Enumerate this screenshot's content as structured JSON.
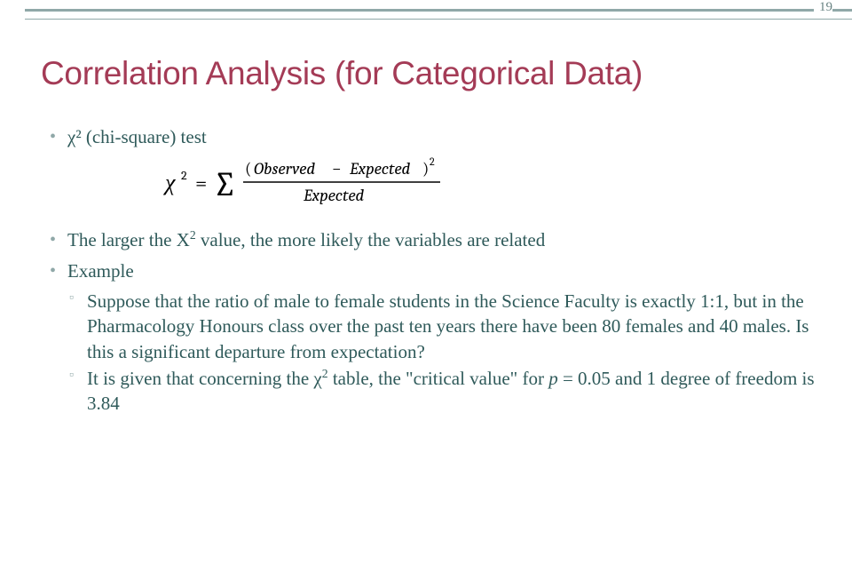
{
  "page_number": "19",
  "colors": {
    "bar": "#90a8a8",
    "page_num": "#6a8484",
    "title": "#a43b56",
    "bullet_marker": "#90a8a8",
    "body_text": "#2f5a5a",
    "formula_text": "#000000"
  },
  "title": "Correlation Analysis (for Categorical Data)",
  "bullets": {
    "l1_0": "χ² (chi-square) test",
    "l1_1_pre": "The larger the Χ",
    "l1_1_post": " value, the more likely the variables are related",
    "l1_2": "Example",
    "l2_0": "Suppose that the ratio of male to female students in the Science Faculty is exactly 1:1, but in the Pharmacology Honours class over the past ten years there have been 80 females and 40 males. Is this a significant departure from expectation?",
    "l2_1_pre": "It is given that concerning the χ",
    "l2_1_mid": " table, the \"critical value\" for ",
    "l2_1_p": "p",
    "l2_1_post": " = 0.05 and 1 degree of freedom is 3.84"
  },
  "formula": {
    "chi": "χ",
    "sup": "2",
    "eq": "=",
    "sigma": "∑",
    "num_open": "(",
    "num_obs": "Observed",
    "num_minus": "−",
    "num_exp": "Expected",
    "num_close": ")",
    "num_sup": "2",
    "den": "Expected"
  }
}
